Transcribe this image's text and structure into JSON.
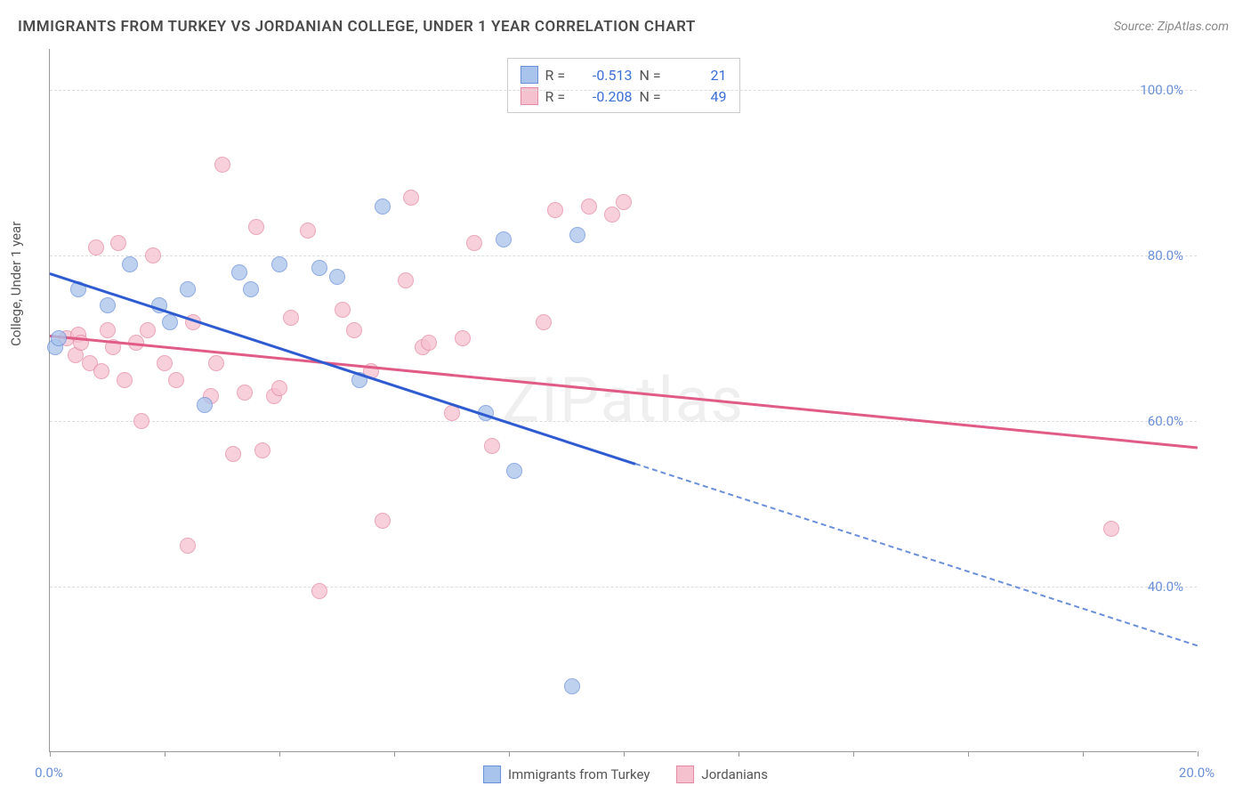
{
  "chart": {
    "type": "scatter",
    "title": "IMMIGRANTS FROM TURKEY VS JORDANIAN COLLEGE, UNDER 1 YEAR CORRELATION CHART",
    "source_label": "Source: ZipAtlas.com",
    "y_axis_label": "College, Under 1 year",
    "watermark": "ZIPatlas",
    "background_color": "#ffffff",
    "grid_color": "#dddddd",
    "axis_color": "#999999",
    "xlim": [
      0,
      20
    ],
    "ylim": [
      20,
      105
    ],
    "x_ticks": [
      0,
      2,
      4,
      6,
      8,
      10,
      12,
      14,
      16,
      18,
      20
    ],
    "x_tick_labels": {
      "0": "0.0%",
      "20": "20.0%"
    },
    "y_ticks": [
      40,
      60,
      80,
      100
    ],
    "y_tick_labels": {
      "40": "40.0%",
      "60": "60.0%",
      "80": "80.0%",
      "100": "100.0%"
    },
    "label_fontsize": 15,
    "title_fontsize": 17,
    "title_color": "#4a4a4a",
    "tick_label_color": "#6a8fd8",
    "marker_size": 18,
    "series": [
      {
        "name": "Immigrants from Turkey",
        "fill_color": "#a9c4ec",
        "stroke_color": "#6a8fd8",
        "r": -0.513,
        "n": 21,
        "trend": {
          "x1": 0,
          "y1": 78,
          "x2": 10.2,
          "y2": 55,
          "color": "#2f5bd0",
          "width": 2.5
        },
        "trend_ext": {
          "x1": 10.2,
          "y1": 55,
          "x2": 20,
          "y2": 33,
          "color": "#6a8fd8",
          "dashed": true
        },
        "points": [
          {
            "x": 0.1,
            "y": 69
          },
          {
            "x": 0.15,
            "y": 70
          },
          {
            "x": 0.5,
            "y": 76
          },
          {
            "x": 1.0,
            "y": 74
          },
          {
            "x": 1.4,
            "y": 79
          },
          {
            "x": 1.9,
            "y": 74
          },
          {
            "x": 2.1,
            "y": 72
          },
          {
            "x": 2.4,
            "y": 76
          },
          {
            "x": 2.7,
            "y": 62
          },
          {
            "x": 3.3,
            "y": 78
          },
          {
            "x": 3.5,
            "y": 76
          },
          {
            "x": 4.0,
            "y": 79
          },
          {
            "x": 4.7,
            "y": 78.5
          },
          {
            "x": 5.0,
            "y": 77.5
          },
          {
            "x": 5.4,
            "y": 65
          },
          {
            "x": 5.8,
            "y": 86
          },
          {
            "x": 7.6,
            "y": 61
          },
          {
            "x": 7.9,
            "y": 82
          },
          {
            "x": 8.1,
            "y": 54
          },
          {
            "x": 9.2,
            "y": 82.5
          },
          {
            "x": 9.1,
            "y": 28
          }
        ]
      },
      {
        "name": "Jordanians",
        "fill_color": "#f6c1cf",
        "stroke_color": "#e38aa3",
        "r": -0.208,
        "n": 49,
        "trend": {
          "x1": 0,
          "y1": 70.5,
          "x2": 20,
          "y2": 57,
          "color": "#e05b85",
          "width": 2.5
        },
        "points": [
          {
            "x": 0.3,
            "y": 70
          },
          {
            "x": 0.45,
            "y": 68
          },
          {
            "x": 0.5,
            "y": 70.5
          },
          {
            "x": 0.55,
            "y": 69.5
          },
          {
            "x": 0.7,
            "y": 67
          },
          {
            "x": 0.8,
            "y": 81
          },
          {
            "x": 0.9,
            "y": 66
          },
          {
            "x": 1.0,
            "y": 71
          },
          {
            "x": 1.1,
            "y": 69
          },
          {
            "x": 1.2,
            "y": 81.5
          },
          {
            "x": 1.3,
            "y": 65
          },
          {
            "x": 1.5,
            "y": 69.5
          },
          {
            "x": 1.6,
            "y": 60
          },
          {
            "x": 1.7,
            "y": 71
          },
          {
            "x": 1.8,
            "y": 80
          },
          {
            "x": 2.0,
            "y": 67
          },
          {
            "x": 2.2,
            "y": 65
          },
          {
            "x": 2.4,
            "y": 45
          },
          {
            "x": 2.5,
            "y": 72
          },
          {
            "x": 2.8,
            "y": 63
          },
          {
            "x": 2.9,
            "y": 67
          },
          {
            "x": 3.0,
            "y": 91
          },
          {
            "x": 3.2,
            "y": 56
          },
          {
            "x": 3.4,
            "y": 63.5
          },
          {
            "x": 3.6,
            "y": 83.5
          },
          {
            "x": 3.7,
            "y": 56.5
          },
          {
            "x": 3.9,
            "y": 63
          },
          {
            "x": 4.0,
            "y": 64
          },
          {
            "x": 4.2,
            "y": 72.5
          },
          {
            "x": 4.5,
            "y": 83
          },
          {
            "x": 4.7,
            "y": 39.5
          },
          {
            "x": 5.1,
            "y": 73.5
          },
          {
            "x": 5.3,
            "y": 71
          },
          {
            "x": 5.6,
            "y": 66
          },
          {
            "x": 5.8,
            "y": 48
          },
          {
            "x": 6.2,
            "y": 77
          },
          {
            "x": 6.3,
            "y": 87
          },
          {
            "x": 6.5,
            "y": 69
          },
          {
            "x": 6.6,
            "y": 69.5
          },
          {
            "x": 7.0,
            "y": 61
          },
          {
            "x": 7.2,
            "y": 70
          },
          {
            "x": 7.4,
            "y": 81.5
          },
          {
            "x": 7.7,
            "y": 57
          },
          {
            "x": 8.6,
            "y": 72
          },
          {
            "x": 8.8,
            "y": 85.5
          },
          {
            "x": 9.4,
            "y": 86
          },
          {
            "x": 9.8,
            "y": 85
          },
          {
            "x": 10.0,
            "y": 86.5
          },
          {
            "x": 18.5,
            "y": 47
          }
        ]
      }
    ],
    "legend_top": {
      "r_label": "R =",
      "n_label": "N ="
    },
    "legend_bottom_labels": [
      "Immigrants from Turkey",
      "Jordanians"
    ]
  }
}
